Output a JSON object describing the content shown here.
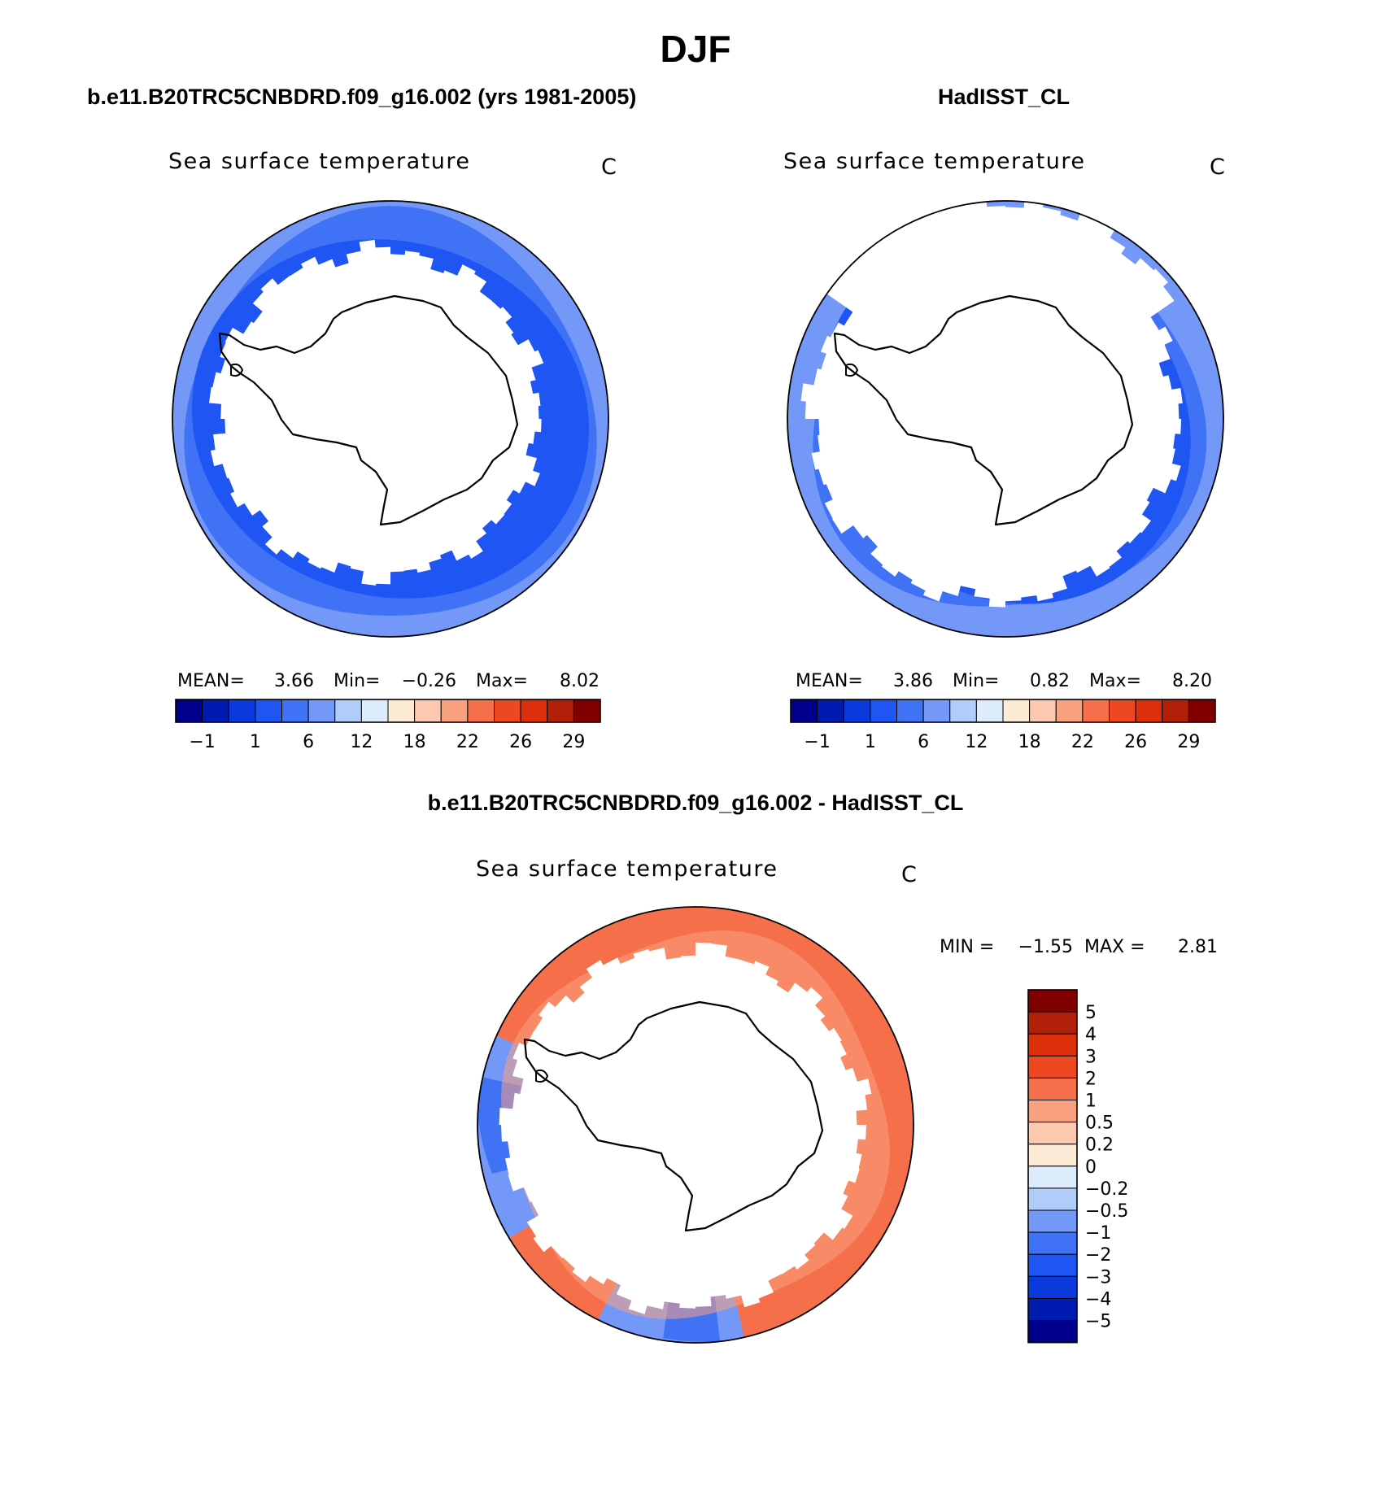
{
  "page": {
    "season": "DJF"
  },
  "panels": [
    {
      "id": "model",
      "heading": "b.e11.B20TRC5CNBDRD.f09_g16.002 (yrs 1981-2005)",
      "variable": "Sea surface temperature",
      "units": "C",
      "stats": {
        "mean_label": "MEAN=",
        "mean": "3.66",
        "min_label": "Min=",
        "min": "−0.26",
        "max_label": "Max=",
        "max": "8.02"
      }
    },
    {
      "id": "obs",
      "heading": "HadISST_CL",
      "variable": "Sea surface temperature",
      "units": "C",
      "stats": {
        "mean_label": "MEAN=",
        "mean": "3.86",
        "min_label": "Min=",
        "min": "0.82",
        "max_label": "Max=",
        "max": "8.20"
      }
    },
    {
      "id": "diff",
      "heading": "b.e11.B20TRC5CNBDRD.f09_g16.002 - HadISST_CL",
      "variable": "Sea surface temperature",
      "units": "C",
      "stats": {
        "min_label": "MIN =",
        "min": "−1.55",
        "max_label": "MAX =",
        "max": "2.81"
      }
    }
  ],
  "colorbar_sst": {
    "colors": [
      "#00008c",
      "#001cb0",
      "#0a3adb",
      "#1f55f2",
      "#3f72f5",
      "#7498f7",
      "#b0cdfa",
      "#dcecfc",
      "#fdebd6",
      "#fcc9b0",
      "#f9a07f",
      "#f56f4a",
      "#ee4823",
      "#dc2f0a",
      "#b2200a",
      "#800000"
    ],
    "tick_labels": [
      "−1",
      "1",
      "6",
      "12",
      "18",
      "22",
      "26",
      "29"
    ]
  },
  "colorbar_diff": {
    "colors": [
      "#800000",
      "#b2200a",
      "#dc2f0a",
      "#ee4823",
      "#f56f4a",
      "#f9a07f",
      "#fcc9b0",
      "#fdebd6",
      "#dcecfc",
      "#b0cdfa",
      "#7498f7",
      "#3f72f5",
      "#1f55f2",
      "#0a3adb",
      "#001cb0",
      "#00008c"
    ],
    "tick_labels": [
      "5",
      "4",
      "3",
      "2",
      "1",
      "0.5",
      "0.2",
      "0",
      "−0.2",
      "−0.5",
      "−1",
      "−2",
      "−3",
      "−4",
      "−5"
    ]
  },
  "map_colors": {
    "ice_mask": "#ffffff",
    "model_outer": "#3f72f5",
    "model_mid": "#1f55f2",
    "model_edge": "#7498f7",
    "obs_inner": "#1f55f2",
    "obs_outer": "#3f72f5",
    "obs_edge": "#7498f7",
    "diff_warm": "#f56f4a",
    "diff_warm_light": "#f9a07f",
    "diff_cool": "#7498f7",
    "diff_cool_dark": "#3f72f5",
    "coast": "#000000"
  }
}
